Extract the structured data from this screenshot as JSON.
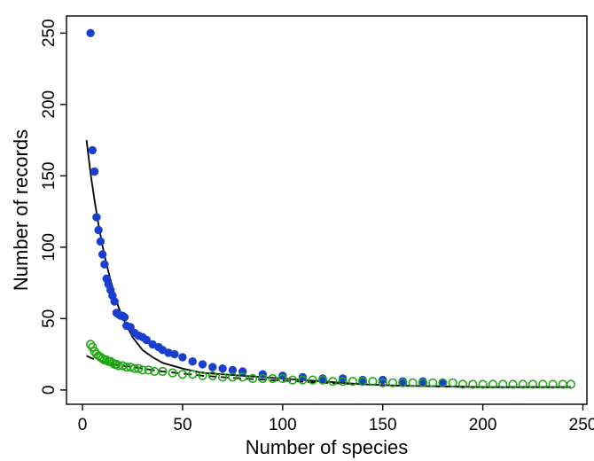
{
  "chart_data": {
    "type": "scatter",
    "title": "",
    "xlabel": "Number of species",
    "ylabel": "Number of records",
    "xlim": [
      -8,
      252
    ],
    "ylim": [
      -10,
      262
    ],
    "xticks": [
      0,
      50,
      100,
      150,
      200,
      250
    ],
    "yticks": [
      0,
      50,
      100,
      150,
      200,
      250
    ],
    "x_tick_labels": [
      "0",
      "50",
      "100",
      "150",
      "200",
      "250"
    ],
    "y_tick_labels": [
      "0",
      "50",
      "100",
      "150",
      "200",
      "250"
    ],
    "grid": false,
    "legend": "none",
    "series": [
      {
        "marker": "filled-circle",
        "color": "#1a3fcf",
        "points": [
          [
            4,
            250
          ],
          [
            5,
            168
          ],
          [
            6,
            153
          ],
          [
            7,
            121
          ],
          [
            8,
            112
          ],
          [
            9,
            104
          ],
          [
            10,
            95
          ],
          [
            11,
            88
          ],
          [
            12,
            78
          ],
          [
            13,
            74
          ],
          [
            14,
            70
          ],
          [
            15,
            66
          ],
          [
            16,
            62
          ],
          [
            17,
            54
          ],
          [
            18,
            53
          ],
          [
            19,
            52
          ],
          [
            20,
            52
          ],
          [
            21,
            51
          ],
          [
            22,
            45
          ],
          [
            24,
            44
          ],
          [
            26,
            40
          ],
          [
            28,
            38
          ],
          [
            30,
            37
          ],
          [
            32,
            35
          ],
          [
            35,
            32
          ],
          [
            38,
            30
          ],
          [
            40,
            28
          ],
          [
            43,
            26
          ],
          [
            46,
            25
          ],
          [
            50,
            23
          ],
          [
            55,
            20
          ],
          [
            60,
            18
          ],
          [
            65,
            16
          ],
          [
            70,
            15
          ],
          [
            75,
            14
          ],
          [
            80,
            13
          ],
          [
            90,
            11
          ],
          [
            100,
            10
          ],
          [
            110,
            9
          ],
          [
            120,
            8
          ],
          [
            130,
            8
          ],
          [
            140,
            7
          ],
          [
            150,
            7
          ],
          [
            160,
            6
          ],
          [
            170,
            6
          ],
          [
            180,
            5
          ]
        ]
      },
      {
        "marker": "open-circle",
        "color": "#1fa814",
        "points": [
          [
            4,
            32
          ],
          [
            5,
            30
          ],
          [
            6,
            27
          ],
          [
            7,
            25
          ],
          [
            8,
            24
          ],
          [
            9,
            23
          ],
          [
            10,
            22
          ],
          [
            11,
            21
          ],
          [
            12,
            21
          ],
          [
            13,
            20
          ],
          [
            14,
            20
          ],
          [
            15,
            19
          ],
          [
            16,
            18
          ],
          [
            17,
            18
          ],
          [
            18,
            17
          ],
          [
            20,
            17
          ],
          [
            22,
            16
          ],
          [
            24,
            16
          ],
          [
            26,
            15
          ],
          [
            28,
            15
          ],
          [
            30,
            14
          ],
          [
            33,
            14
          ],
          [
            36,
            13
          ],
          [
            40,
            13
          ],
          [
            45,
            12
          ],
          [
            50,
            11
          ],
          [
            55,
            11
          ],
          [
            60,
            10
          ],
          [
            65,
            10
          ],
          [
            70,
            9
          ],
          [
            75,
            9
          ],
          [
            80,
            9
          ],
          [
            85,
            8
          ],
          [
            90,
            8
          ],
          [
            95,
            8
          ],
          [
            100,
            8
          ],
          [
            105,
            7
          ],
          [
            110,
            7
          ],
          [
            115,
            7
          ],
          [
            120,
            7
          ],
          [
            125,
            6
          ],
          [
            130,
            6
          ],
          [
            135,
            6
          ],
          [
            140,
            6
          ],
          [
            145,
            6
          ],
          [
            150,
            5
          ],
          [
            155,
            5
          ],
          [
            160,
            5
          ],
          [
            165,
            5
          ],
          [
            170,
            5
          ],
          [
            175,
            5
          ],
          [
            180,
            5
          ],
          [
            185,
            5
          ],
          [
            190,
            4
          ],
          [
            195,
            4
          ],
          [
            200,
            4
          ],
          [
            205,
            4
          ],
          [
            210,
            4
          ],
          [
            215,
            4
          ],
          [
            220,
            4
          ],
          [
            225,
            4
          ],
          [
            230,
            4
          ],
          [
            235,
            4
          ],
          [
            240,
            4
          ],
          [
            244,
            4
          ]
        ]
      }
    ],
    "fits": [
      {
        "style": "solid",
        "color": "#000000",
        "points": [
          [
            2,
            175
          ],
          [
            4,
            152
          ],
          [
            6,
            133
          ],
          [
            8,
            116
          ],
          [
            10,
            101
          ],
          [
            12,
            88
          ],
          [
            14,
            77
          ],
          [
            16,
            67
          ],
          [
            18,
            58
          ],
          [
            20,
            51
          ],
          [
            25,
            37
          ],
          [
            30,
            28
          ],
          [
            35,
            23
          ],
          [
            40,
            19
          ],
          [
            50,
            15
          ],
          [
            60,
            12
          ],
          [
            70,
            11
          ],
          [
            80,
            10
          ],
          [
            100,
            8
          ],
          [
            120,
            6
          ],
          [
            140,
            4
          ],
          [
            160,
            3
          ],
          [
            180,
            2.5
          ],
          [
            200,
            2
          ],
          [
            220,
            2
          ],
          [
            244,
            2
          ]
        ]
      },
      {
        "style": "dashed",
        "color": "#000000",
        "points": [
          [
            2,
            24
          ],
          [
            5,
            22
          ],
          [
            10,
            20
          ],
          [
            15,
            18
          ],
          [
            20,
            17
          ],
          [
            30,
            15
          ],
          [
            40,
            13
          ],
          [
            50,
            11.5
          ],
          [
            60,
            10
          ],
          [
            80,
            8
          ],
          [
            100,
            6.5
          ],
          [
            120,
            5
          ],
          [
            140,
            4
          ],
          [
            160,
            3
          ],
          [
            180,
            2.5
          ],
          [
            200,
            2
          ],
          [
            220,
            2
          ],
          [
            244,
            2
          ]
        ]
      }
    ]
  }
}
